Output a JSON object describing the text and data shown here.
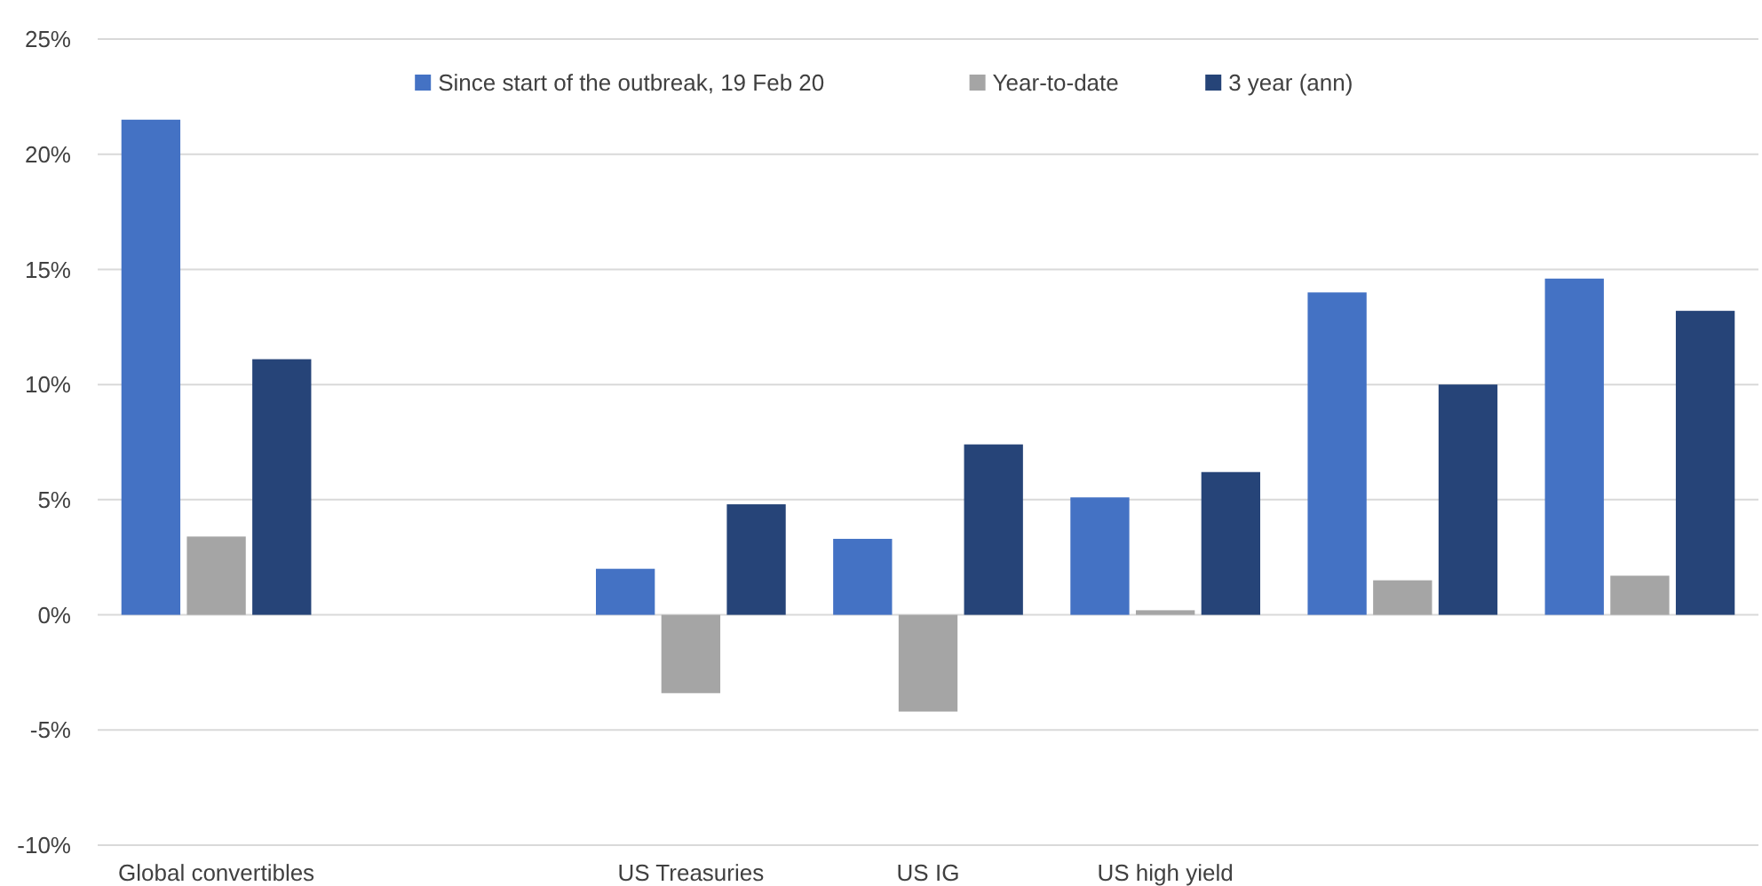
{
  "chart_data": {
    "type": "bar",
    "categories": [
      "Global convertibles",
      null,
      "US Treasuries",
      "US IG",
      "US high yield",
      null,
      null
    ],
    "series": [
      {
        "name": "Since start of the outbreak, 19 Feb 20",
        "color": "#4472c4",
        "values": [
          21.5,
          null,
          2.0,
          3.3,
          5.1,
          14.0,
          14.6
        ]
      },
      {
        "name": "Year-to-date",
        "color": "#a5a5a5",
        "values": [
          3.4,
          null,
          -3.4,
          -4.2,
          0.2,
          1.5,
          1.7
        ]
      },
      {
        "name": "3 year (ann)",
        "color": "#264478",
        "values": [
          11.1,
          null,
          4.8,
          7.4,
          6.2,
          10.0,
          13.2
        ]
      }
    ],
    "ylim": [
      -10,
      25
    ],
    "yticks": [
      {
        "value": -10,
        "label": "-10%"
      },
      {
        "value": -5,
        "label": "-5%"
      },
      {
        "value": 0,
        "label": "0%"
      },
      {
        "value": 5,
        "label": "5%"
      },
      {
        "value": 10,
        "label": "10%"
      },
      {
        "value": 15,
        "label": "15%"
      },
      {
        "value": 20,
        "label": "20%"
      },
      {
        "value": 25,
        "label": "25%"
      }
    ],
    "grid": "y",
    "legend": "top"
  }
}
